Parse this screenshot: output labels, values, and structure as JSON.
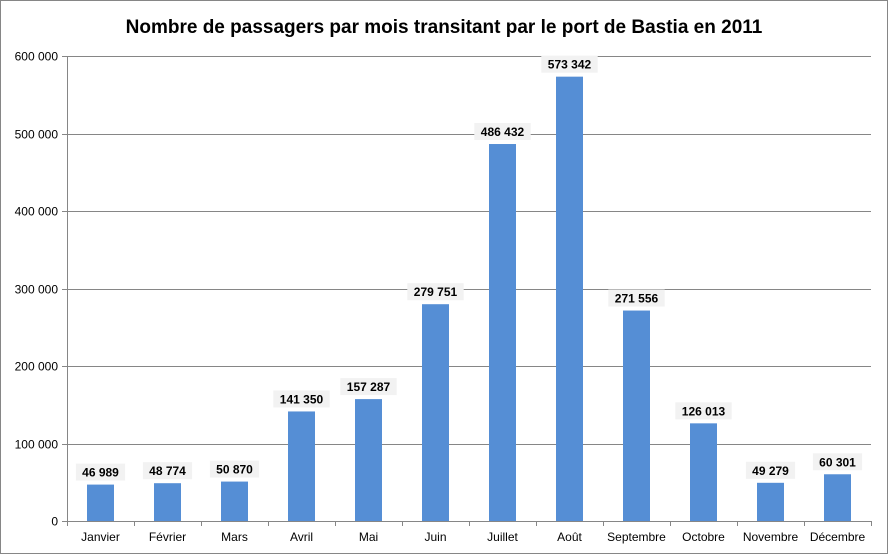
{
  "chart_data": {
    "type": "bar",
    "title": "Nombre de passagers par mois transitant par le port de Bastia en 2011",
    "xlabel": "",
    "ylabel": "",
    "ylim": [
      0,
      600000
    ],
    "yticks": [
      0,
      100000,
      200000,
      300000,
      400000,
      500000,
      600000
    ],
    "ytick_labels": [
      "0",
      "100 000",
      "200 000",
      "300 000",
      "400 000",
      "500 000",
      "600 000"
    ],
    "grid": true,
    "categories": [
      "Janvier",
      "Février",
      "Mars",
      "Avril",
      "Mai",
      "Juin",
      "Juillet",
      "Août",
      "Septembre",
      "Octobre",
      "Novembre",
      "Décembre"
    ],
    "values": [
      46989,
      48774,
      50870,
      141350,
      157287,
      279751,
      486432,
      573342,
      271556,
      126013,
      49279,
      60301
    ],
    "data_labels": [
      "46 989",
      "48 774",
      "50 870",
      "141 350",
      "157 287",
      "279 751",
      "486 432",
      "573 342",
      "271 556",
      "126 013",
      "49 279",
      "60 301"
    ],
    "colors": {
      "bar": "#558ED5",
      "grid": "#868686",
      "axis": "#868686",
      "label_bg": "#F2F2F2"
    }
  }
}
